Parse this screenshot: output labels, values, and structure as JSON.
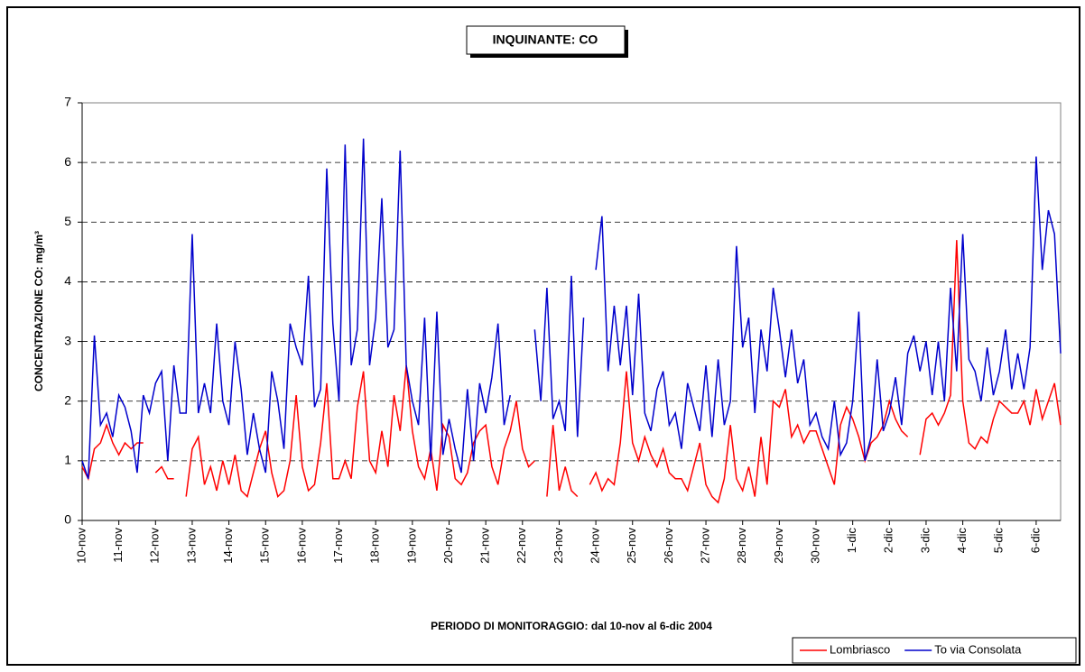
{
  "chart_data": {
    "type": "line",
    "title": "INQUINANTE: CO",
    "ylabel": "CONCENTRAZIONE CO: mg/m³",
    "xlabel": "PERIODO DI MONITORAGGIO: dal 10-nov al 6-dic 2004",
    "categories": [
      "10-nov",
      null,
      null,
      null,
      null,
      null,
      "11-nov",
      null,
      null,
      null,
      null,
      null,
      "12-nov",
      null,
      null,
      null,
      null,
      null,
      "13-nov",
      null,
      null,
      null,
      null,
      null,
      "14-nov",
      null,
      null,
      null,
      null,
      null,
      "15-nov",
      null,
      null,
      null,
      null,
      null,
      "16-nov",
      null,
      null,
      null,
      null,
      null,
      "17-nov",
      null,
      null,
      null,
      null,
      null,
      "18-nov",
      null,
      null,
      null,
      null,
      null,
      "19-nov",
      null,
      null,
      null,
      null,
      null,
      "20-nov",
      null,
      null,
      null,
      null,
      null,
      "21-nov",
      null,
      null,
      null,
      null,
      null,
      "22-nov",
      null,
      null,
      null,
      null,
      null,
      "23-nov",
      null,
      null,
      null,
      null,
      null,
      "24-nov",
      null,
      null,
      null,
      null,
      null,
      "25-nov",
      null,
      null,
      null,
      null,
      null,
      "26-nov",
      null,
      null,
      null,
      null,
      null,
      "27-nov",
      null,
      null,
      null,
      null,
      null,
      "28-nov",
      null,
      null,
      null,
      null,
      null,
      "29-nov",
      null,
      null,
      null,
      null,
      null,
      "30-nov",
      null,
      null,
      null,
      null,
      null,
      "1-dic",
      null,
      null,
      null,
      null,
      null,
      "2-dic",
      null,
      null,
      null,
      null,
      null,
      "3-dic",
      null,
      null,
      null,
      null,
      null,
      "4-dic",
      null,
      null,
      null,
      null,
      null,
      "5-dic",
      null,
      null,
      null,
      null,
      null,
      "6-dic",
      null,
      null,
      null,
      null
    ],
    "series": [
      {
        "name": "Lombriasco",
        "color": "#ff0000",
        "values": [
          0.9,
          0.7,
          1.2,
          1.3,
          1.6,
          1.3,
          1.1,
          1.3,
          1.2,
          1.3,
          1.3,
          null,
          0.8,
          0.9,
          0.7,
          0.7,
          null,
          0.4,
          1.2,
          1.4,
          0.6,
          0.9,
          0.5,
          1.0,
          0.6,
          1.1,
          0.5,
          0.4,
          0.8,
          1.2,
          1.5,
          0.8,
          0.4,
          0.5,
          1.0,
          2.1,
          0.9,
          0.5,
          0.6,
          1.3,
          2.3,
          0.7,
          0.7,
          1.0,
          0.7,
          1.9,
          2.5,
          1.0,
          0.8,
          1.5,
          0.9,
          2.1,
          1.5,
          2.6,
          1.5,
          0.9,
          0.7,
          1.2,
          0.5,
          1.6,
          1.4,
          0.7,
          0.6,
          0.8,
          1.3,
          1.5,
          1.6,
          0.9,
          0.6,
          1.2,
          1.5,
          2.0,
          1.2,
          0.9,
          1.0,
          null,
          0.4,
          1.6,
          0.5,
          0.9,
          0.5,
          0.4,
          null,
          0.6,
          0.8,
          0.5,
          0.7,
          0.6,
          1.3,
          2.5,
          1.3,
          1.0,
          1.4,
          1.1,
          0.9,
          1.2,
          0.8,
          0.7,
          0.7,
          0.5,
          0.9,
          1.3,
          0.6,
          0.4,
          0.3,
          0.7,
          1.6,
          0.7,
          0.5,
          0.9,
          0.4,
          1.4,
          0.6,
          2.0,
          1.9,
          2.2,
          1.4,
          1.6,
          1.3,
          1.5,
          1.5,
          1.2,
          0.9,
          0.6,
          1.6,
          1.9,
          1.7,
          1.4,
          1.0,
          1.3,
          1.4,
          1.6,
          2.0,
          1.7,
          1.5,
          1.4,
          null,
          1.1,
          1.7,
          1.8,
          1.6,
          1.8,
          2.1,
          4.7,
          2.0,
          1.3,
          1.2,
          1.4,
          1.3,
          1.7,
          2.0,
          1.9,
          1.8,
          1.8,
          2.0,
          1.6,
          2.2,
          1.7,
          2.0,
          2.3,
          1.6
        ]
      },
      {
        "name": "To via Consolata",
        "color": "#0000cc",
        "values": [
          1.0,
          0.7,
          3.1,
          1.6,
          1.8,
          1.4,
          2.1,
          1.9,
          1.5,
          0.8,
          2.1,
          1.8,
          2.3,
          2.5,
          1.0,
          2.6,
          1.8,
          1.8,
          4.8,
          1.8,
          2.3,
          1.8,
          3.3,
          2.0,
          1.6,
          3.0,
          2.2,
          1.1,
          1.8,
          1.2,
          0.8,
          2.5,
          2.0,
          1.2,
          3.3,
          2.9,
          2.6,
          4.1,
          1.9,
          2.2,
          5.9,
          3.3,
          2.0,
          6.3,
          2.6,
          3.2,
          6.4,
          2.6,
          3.4,
          5.4,
          2.9,
          3.2,
          6.2,
          2.6,
          2.0,
          1.6,
          3.4,
          1.0,
          3.5,
          1.1,
          1.7,
          1.2,
          0.8,
          2.2,
          1.0,
          2.3,
          1.8,
          2.4,
          3.3,
          1.6,
          2.1,
          null,
          null,
          null,
          3.2,
          2.0,
          3.9,
          1.7,
          2.0,
          1.5,
          4.1,
          1.4,
          3.4,
          null,
          4.2,
          5.1,
          2.5,
          3.6,
          2.6,
          3.6,
          2.1,
          3.8,
          1.8,
          1.5,
          2.2,
          2.5,
          1.6,
          1.8,
          1.2,
          2.3,
          1.9,
          1.5,
          2.6,
          1.4,
          2.7,
          1.6,
          2.0,
          4.6,
          2.9,
          3.4,
          1.8,
          3.2,
          2.5,
          3.9,
          3.2,
          2.4,
          3.2,
          2.3,
          2.7,
          1.6,
          1.8,
          1.4,
          1.2,
          2.0,
          1.1,
          1.3,
          2.0,
          3.5,
          1.0,
          1.4,
          2.7,
          1.5,
          1.8,
          2.4,
          1.6,
          2.8,
          3.1,
          2.5,
          3.0,
          2.1,
          3.0,
          2.0,
          3.9,
          2.5,
          4.8,
          2.7,
          2.5,
          2.0,
          2.9,
          2.1,
          2.5,
          3.2,
          2.2,
          2.8,
          2.2,
          2.9,
          6.1,
          4.2,
          5.2,
          4.8,
          2.8
        ]
      }
    ],
    "ylim": [
      0,
      7
    ],
    "yticks": [
      0,
      1,
      2,
      3,
      4,
      5,
      6,
      7
    ],
    "grid": true,
    "legend": "lower right"
  }
}
